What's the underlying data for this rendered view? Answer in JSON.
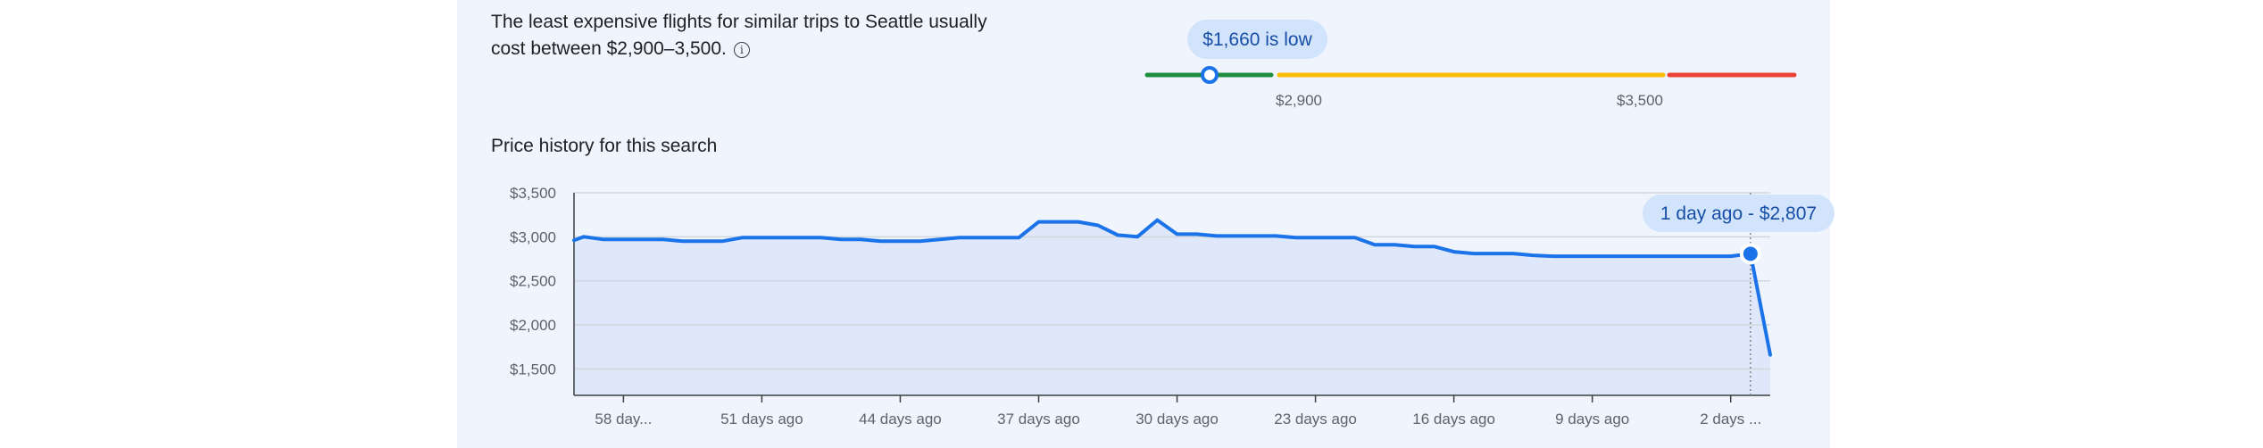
{
  "summary": {
    "line1": "The least expensive flights for similar trips to Seattle usually",
    "line2": "cost between $2,900–3,500.",
    "info_icon": "info-icon"
  },
  "price_range": {
    "current_label": "$1,660 is low",
    "low_threshold": "$2,900",
    "high_threshold": "$3,500",
    "colors": {
      "low": "#1e8e3e",
      "typical": "#fbbc04",
      "high": "#ea4335",
      "badge_bg": "#d2e3fc",
      "badge_text": "#174ea6"
    }
  },
  "history_title": "Price history for this search",
  "tooltip": "1 day ago - $2,807",
  "chart_data": {
    "type": "area",
    "title": "Price history for this search",
    "xlabel": "",
    "ylabel": "",
    "ylim": [
      1200,
      3500
    ],
    "y_ticks": [
      "$3,500",
      "$3,000",
      "$2,500",
      "$2,000",
      "$1,500"
    ],
    "y_tick_values": [
      3500,
      3000,
      2500,
      2000,
      1500
    ],
    "x_ticks": [
      "58 day...",
      "51 days ago",
      "44 days ago",
      "37 days ago",
      "30 days ago",
      "23 days ago",
      "16 days ago",
      "9 days ago",
      "2 days ..."
    ],
    "x_tick_days_ago": [
      58,
      51,
      44,
      37,
      30,
      23,
      16,
      9,
      2
    ],
    "x_range_days_ago": [
      60.5,
      0
    ],
    "series": [
      {
        "days_ago": [
          60.5,
          60,
          59,
          58,
          57,
          56,
          55,
          54,
          53,
          52,
          51,
          50,
          49,
          48,
          47,
          46,
          45,
          44,
          43,
          42,
          41,
          40,
          39,
          38,
          37,
          36,
          35,
          34,
          33,
          32,
          31,
          30,
          29,
          28,
          27,
          26,
          25,
          24,
          23,
          22,
          21,
          20,
          19,
          18,
          17,
          16,
          15,
          14,
          13,
          12,
          11,
          10,
          9,
          8,
          7,
          6,
          5,
          4,
          3,
          2,
          1,
          0
        ],
        "values": [
          2960,
          3000,
          2970,
          2970,
          2970,
          2970,
          2950,
          2950,
          2950,
          2990,
          2990,
          2990,
          2990,
          2990,
          2970,
          2970,
          2950,
          2950,
          2950,
          2970,
          2990,
          2990,
          2990,
          2990,
          3170,
          3170,
          3170,
          3130,
          3020,
          3000,
          3190,
          3030,
          3030,
          3010,
          3010,
          3010,
          3010,
          2990,
          2990,
          2990,
          2990,
          2910,
          2910,
          2890,
          2890,
          2830,
          2810,
          2810,
          2810,
          2790,
          2780,
          2780,
          2780,
          2780,
          2780,
          2780,
          2780,
          2780,
          2780,
          2780,
          2807,
          1660
        ]
      }
    ],
    "highlight": {
      "days_ago": 1,
      "value": 2807
    },
    "colors": {
      "line": "#1a73e8",
      "fill": "#dfe8fa",
      "grid": "#d2d6dd",
      "axis": "#5f6368"
    }
  }
}
